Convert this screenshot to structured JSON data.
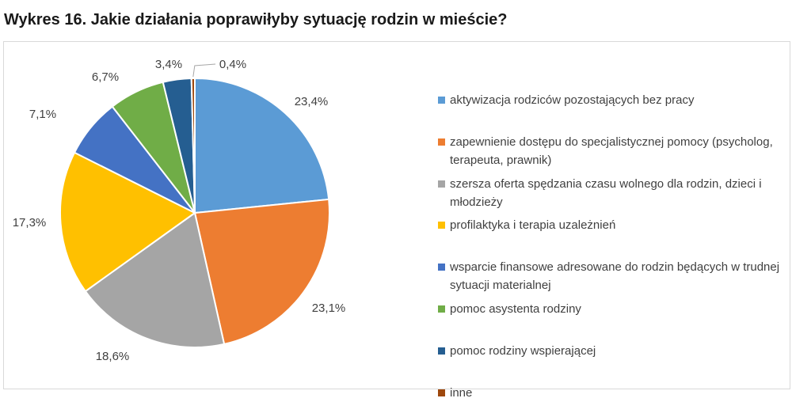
{
  "title": "Wykres 16. Jakie działania poprawiłyby sytuację rodzin w mieście?",
  "chart_data": {
    "type": "pie",
    "title": "Wykres 16. Jakie działania poprawiłyby sytuację rodzin w mieście?",
    "legend_position": "right",
    "start_angle_deg": 0,
    "direction": "clockwise",
    "slices": [
      {
        "label": "aktywizacja rodziców pozostających bez pracy",
        "value": 23.4,
        "value_label": "23,4%",
        "color": "#5B9BD5"
      },
      {
        "label": "zapewnienie dostępu do specjalistycznej pomocy (psycholog, terapeuta, prawnik)",
        "value": 23.1,
        "value_label": "23,1%",
        "color": "#ED7D31"
      },
      {
        "label": "szersza oferta spędzania czasu wolnego dla rodzin, dzieci i młodzieży",
        "value": 18.6,
        "value_label": "18,6%",
        "color": "#A5A5A5"
      },
      {
        "label": "profilaktyka i terapia uzależnień",
        "value": 17.3,
        "value_label": "17,3%",
        "color": "#FFC000"
      },
      {
        "label": "wsparcie finansowe adresowane do rodzin będących w trudnej sytuacji materialnej",
        "value": 7.1,
        "value_label": "7,1%",
        "color": "#4472C4"
      },
      {
        "label": "pomoc asystenta rodziny",
        "value": 6.7,
        "value_label": "6,7%",
        "color": "#70AD47"
      },
      {
        "label": "pomoc rodziny wspierającej",
        "value": 3.4,
        "value_label": "3,4%",
        "color": "#255E91"
      },
      {
        "label": "inne",
        "value": 0.4,
        "value_label": "0,4%",
        "color": "#9E480E"
      }
    ]
  }
}
